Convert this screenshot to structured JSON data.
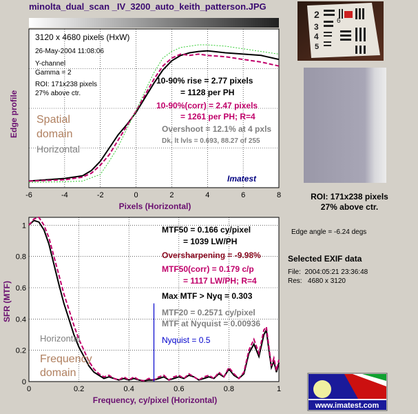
{
  "title": "minolta_dual_scan _IV_3200_auto_keith_patterson.JPG",
  "edge_info": {
    "size": "3120 x 4680 pixels (HxW)",
    "date": "26-May-2004 11:08:06",
    "channel": "Y-channel",
    "gamma": "Gamma = 2",
    "roi": "ROI: 171x238 pixels",
    "above": "27% above ctr."
  },
  "edge_results": {
    "rise": "10-90% rise = 2.77 pixels",
    "per_ph": "= 1128 per PH",
    "rise_corr": "10-90%(corr) = 2.47 pixels",
    "per_ph_corr": "= 1261 per PH;  R=4",
    "overshoot": "Overshoot = 12.1% at 4 pxls",
    "levels": "Dk, lt lvls = 0.693, 88.27 of 255"
  },
  "edge_labels": {
    "spatial": "Spatial",
    "domain": "domain",
    "horizontal": "Horizontal",
    "brand": "Imatest"
  },
  "mtf_results": {
    "mtf50": "MTF50 = 0.166 cy/pixel",
    "mtf50_lw": "= 1039 LW/PH",
    "oversharpening": "Oversharpening = -9.98%",
    "mtf50_corr": "MTF50(corr) = 0.179 c/p",
    "mtf50_corr_lw": "= 1117 LW/PH;  R=4",
    "max_mtf": "Max MTF > Nyq = 0.303",
    "mtf20": "MTF20 = 0.2571 cy/pixel",
    "mtf_nyq": "MTF at Nyquist = 0.00936",
    "nyquist": "Nyquist = 0.5"
  },
  "mtf_labels": {
    "horizontal": "Horizontal",
    "frequency": "Frequency",
    "domain": "domain"
  },
  "side": {
    "roi": "ROI: 171x238 pixels",
    "above": "27% above ctr.",
    "edge_angle": "Edge angle = -6.24 degs",
    "exif_title": "Selected EXIF data",
    "exif_file": "File:  2004:05:21 23:36:48",
    "exif_res": "Res:   4680 x 3120",
    "website": "www.imatest.com"
  },
  "colors": {
    "measured": "#000000",
    "corrected": "#c0006a",
    "standard": "#33cc33",
    "nyquist_line": "#0000cc",
    "label_brown": "#b08060",
    "label_gray": "#808080"
  },
  "chart_data": [
    {
      "type": "line",
      "name": "edge_profile",
      "xlabel": "Pixels (Horizontal)",
      "ylabel": "Edge profile",
      "xlim": [
        -6,
        8
      ],
      "xticks": [
        -6,
        -4,
        -2,
        0,
        2,
        4,
        6,
        8
      ],
      "grid": true,
      "series": [
        {
          "style": "solid",
          "color": "#000000",
          "points": [
            [
              -6,
              0.0
            ],
            [
              -5,
              0.01
            ],
            [
              -4,
              0.02
            ],
            [
              -3,
              0.04
            ],
            [
              -2.5,
              0.08
            ],
            [
              -2,
              0.15
            ],
            [
              -1.5,
              0.25
            ],
            [
              -1,
              0.35
            ],
            [
              -0.5,
              0.43
            ],
            [
              0,
              0.52
            ],
            [
              0.5,
              0.63
            ],
            [
              1,
              0.74
            ],
            [
              1.5,
              0.84
            ],
            [
              2,
              0.91
            ],
            [
              2.5,
              0.95
            ],
            [
              3,
              0.97
            ],
            [
              3.5,
              0.98
            ],
            [
              4,
              0.985
            ],
            [
              5,
              0.97
            ],
            [
              6,
              0.96
            ],
            [
              7,
              0.95
            ],
            [
              8,
              0.92
            ]
          ]
        },
        {
          "style": "dashed",
          "color": "#c0006a",
          "points": [
            [
              -6,
              0.0
            ],
            [
              -5,
              0.005
            ],
            [
              -4,
              0.01
            ],
            [
              -3,
              0.03
            ],
            [
              -2.5,
              0.06
            ],
            [
              -2,
              0.12
            ],
            [
              -1.5,
              0.2
            ],
            [
              -1,
              0.31
            ],
            [
              -0.5,
              0.42
            ],
            [
              0,
              0.53
            ],
            [
              0.5,
              0.65
            ],
            [
              1,
              0.77
            ],
            [
              1.5,
              0.87
            ],
            [
              2,
              0.93
            ],
            [
              2.5,
              0.96
            ],
            [
              3,
              0.95
            ],
            [
              3.5,
              0.96
            ],
            [
              4,
              0.95
            ],
            [
              5,
              0.94
            ],
            [
              6,
              0.92
            ],
            [
              7,
              0.9
            ],
            [
              8,
              0.87
            ]
          ]
        },
        {
          "style": "dotted",
          "color": "#33cc33",
          "points": [
            [
              -6,
              -0.01
            ],
            [
              -4,
              -0.005
            ],
            [
              -3,
              0.0
            ],
            [
              -2,
              0.05
            ],
            [
              -1.5,
              0.15
            ],
            [
              -1,
              0.26
            ],
            [
              -0.5,
              0.4
            ],
            [
              0,
              0.53
            ],
            [
              0.5,
              0.68
            ],
            [
              1,
              0.82
            ],
            [
              1.5,
              0.93
            ],
            [
              2,
              0.98
            ],
            [
              2.5,
              1.01
            ],
            [
              3,
              1.02
            ],
            [
              3.5,
              1.03
            ],
            [
              4,
              1.03
            ],
            [
              5,
              1.02
            ],
            [
              6,
              1.0
            ],
            [
              7,
              0.98
            ],
            [
              8,
              0.96
            ]
          ]
        }
      ]
    },
    {
      "type": "line",
      "name": "mtf",
      "xlabel": "Frequency,  cy/pixel (Horizontal)",
      "ylabel": "SFR (MTF)",
      "xlim": [
        0,
        1
      ],
      "ylim": [
        0,
        1.05
      ],
      "xticks": [
        0,
        0.2,
        0.4,
        0.6,
        0.8,
        1
      ],
      "yticks": [
        0,
        0.2,
        0.4,
        0.6,
        0.8,
        1
      ],
      "grid": true,
      "nyquist": 0.5,
      "series": [
        {
          "style": "solid",
          "color": "#000000",
          "points": [
            [
              0,
              1.0
            ],
            [
              0.02,
              1.03
            ],
            [
              0.04,
              1.02
            ],
            [
              0.06,
              0.97
            ],
            [
              0.08,
              0.88
            ],
            [
              0.1,
              0.75
            ],
            [
              0.12,
              0.62
            ],
            [
              0.14,
              0.5
            ],
            [
              0.16,
              0.4
            ],
            [
              0.18,
              0.3
            ],
            [
              0.2,
              0.22
            ],
            [
              0.22,
              0.16
            ],
            [
              0.24,
              0.1
            ],
            [
              0.26,
              0.06
            ],
            [
              0.28,
              0.04
            ],
            [
              0.3,
              0.02
            ],
            [
              0.32,
              0.03
            ],
            [
              0.34,
              0.02
            ],
            [
              0.36,
              0.01
            ],
            [
              0.38,
              0.02
            ],
            [
              0.4,
              0.01
            ],
            [
              0.42,
              0.02
            ],
            [
              0.44,
              0.01
            ],
            [
              0.46,
              0.005
            ],
            [
              0.48,
              0.01
            ],
            [
              0.5,
              0.01
            ],
            [
              0.52,
              0.02
            ],
            [
              0.54,
              0.03
            ],
            [
              0.56,
              0.01
            ],
            [
              0.58,
              0.02
            ],
            [
              0.6,
              0.03
            ],
            [
              0.62,
              0.02
            ],
            [
              0.64,
              0.04
            ],
            [
              0.66,
              0.03
            ],
            [
              0.68,
              0.01
            ],
            [
              0.7,
              0.02
            ],
            [
              0.72,
              0.03
            ],
            [
              0.74,
              0.02
            ],
            [
              0.76,
              0.05
            ],
            [
              0.78,
              0.03
            ],
            [
              0.8,
              0.08
            ],
            [
              0.82,
              0.04
            ],
            [
              0.84,
              0.02
            ],
            [
              0.86,
              0.05
            ],
            [
              0.88,
              0.18
            ],
            [
              0.9,
              0.24
            ],
            [
              0.92,
              0.16
            ],
            [
              0.94,
              0.3
            ],
            [
              0.95,
              0.33
            ],
            [
              0.96,
              0.2
            ],
            [
              0.97,
              0.09
            ],
            [
              0.98,
              0.13
            ],
            [
              0.99,
              0.06
            ],
            [
              1,
              0.12
            ]
          ]
        },
        {
          "style": "dashed",
          "color": "#c0006a",
          "points": [
            [
              0,
              1.0
            ],
            [
              0.02,
              1.04
            ],
            [
              0.04,
              1.05
            ],
            [
              0.06,
              1.0
            ],
            [
              0.08,
              0.92
            ],
            [
              0.1,
              0.8
            ],
            [
              0.12,
              0.68
            ],
            [
              0.14,
              0.56
            ],
            [
              0.16,
              0.46
            ],
            [
              0.18,
              0.36
            ],
            [
              0.2,
              0.27
            ],
            [
              0.22,
              0.2
            ],
            [
              0.24,
              0.13
            ],
            [
              0.26,
              0.08
            ],
            [
              0.28,
              0.05
            ],
            [
              0.3,
              0.03
            ],
            [
              0.32,
              0.04
            ],
            [
              0.34,
              0.02
            ],
            [
              0.36,
              0.01
            ],
            [
              0.38,
              0.03
            ],
            [
              0.4,
              0.01
            ],
            [
              0.42,
              0.03
            ],
            [
              0.44,
              0.01
            ],
            [
              0.46,
              0.005
            ],
            [
              0.48,
              0.02
            ],
            [
              0.5,
              0.01
            ],
            [
              0.52,
              0.03
            ],
            [
              0.54,
              0.04
            ],
            [
              0.56,
              0.01
            ],
            [
              0.58,
              0.03
            ],
            [
              0.6,
              0.04
            ],
            [
              0.62,
              0.02
            ],
            [
              0.64,
              0.05
            ],
            [
              0.66,
              0.03
            ],
            [
              0.68,
              0.01
            ],
            [
              0.7,
              0.03
            ],
            [
              0.72,
              0.04
            ],
            [
              0.74,
              0.02
            ],
            [
              0.76,
              0.06
            ],
            [
              0.78,
              0.03
            ],
            [
              0.8,
              0.09
            ],
            [
              0.82,
              0.05
            ],
            [
              0.84,
              0.02
            ],
            [
              0.86,
              0.06
            ],
            [
              0.88,
              0.2
            ],
            [
              0.9,
              0.27
            ],
            [
              0.92,
              0.18
            ],
            [
              0.94,
              0.33
            ],
            [
              0.95,
              0.35
            ],
            [
              0.96,
              0.22
            ],
            [
              0.97,
              0.1
            ],
            [
              0.98,
              0.15
            ],
            [
              0.99,
              0.07
            ],
            [
              1,
              0.14
            ]
          ]
        }
      ]
    }
  ]
}
